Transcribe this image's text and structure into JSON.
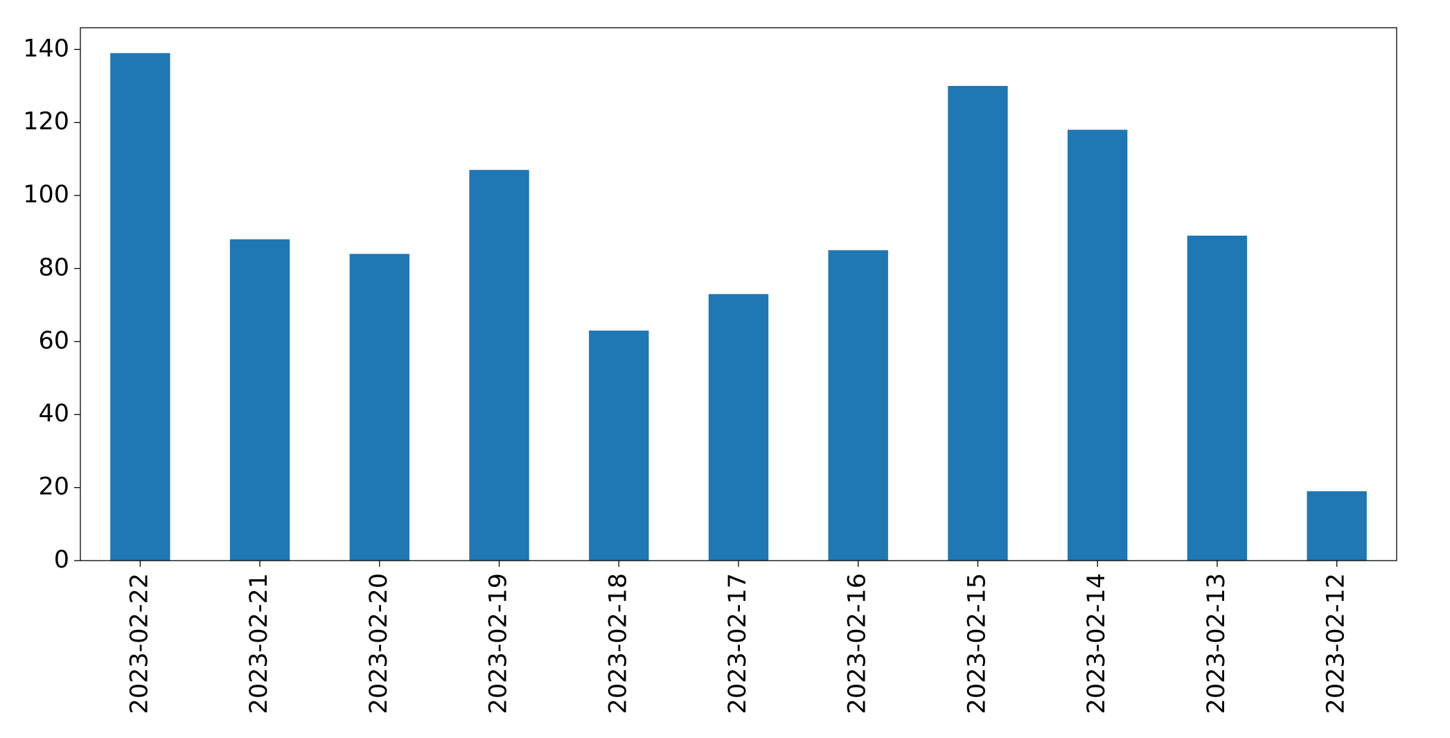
{
  "chart_data": {
    "type": "bar",
    "categories": [
      "2023-02-22",
      "2023-02-21",
      "2023-02-20",
      "2023-02-19",
      "2023-02-18",
      "2023-02-17",
      "2023-02-16",
      "2023-02-15",
      "2023-02-14",
      "2023-02-13",
      "2023-02-12"
    ],
    "values": [
      139,
      88,
      84,
      107,
      63,
      73,
      85,
      130,
      118,
      89,
      19
    ],
    "color": "#1f77b4",
    "ylim": [
      0,
      145.95
    ],
    "yticks": [
      0,
      20,
      40,
      60,
      80,
      100,
      120,
      140
    ],
    "grid": false
  }
}
